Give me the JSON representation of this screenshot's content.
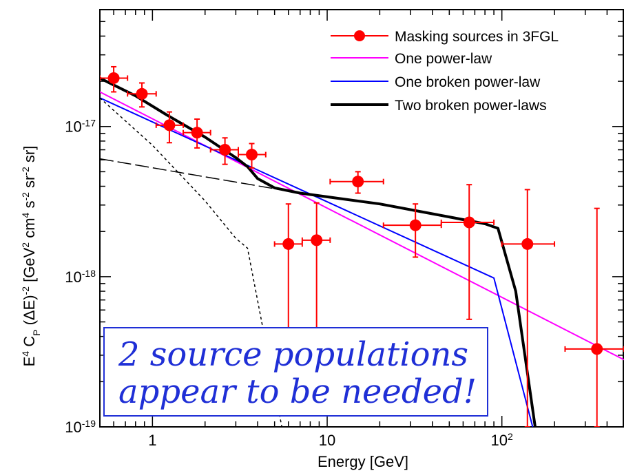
{
  "chart_data": {
    "type": "scatter",
    "title": "",
    "xlabel": "Energy [GeV]",
    "ylabel_parts": {
      "e": "E",
      "four": "4",
      "c": " C",
      "p": "P",
      "delta": " (ΔE)",
      "m2": "-2",
      "gev": " [GeV",
      "two": "2",
      "cm": " cm",
      "four2": "4",
      "s": " s",
      "m2b": "-2",
      "sr": " sr",
      "m2c": "-2",
      "tail": " sr]"
    },
    "xscale": "log",
    "yscale": "log",
    "xlim": [
      0.5,
      500
    ],
    "ylim": [
      1e-19,
      6e-17
    ],
    "xticks": [
      {
        "value": 1,
        "label": "1",
        "sup": ""
      },
      {
        "value": 10,
        "label": "10",
        "sup": ""
      },
      {
        "value": 100,
        "label": "10",
        "sup": "2"
      }
    ],
    "yticks": [
      {
        "value": 1e-19,
        "label": "10",
        "sup": "-19"
      },
      {
        "value": 1e-18,
        "label": "10",
        "sup": "-18"
      },
      {
        "value": 1e-17,
        "label": "10",
        "sup": "-17"
      }
    ],
    "legend_position": "top-right",
    "series": [
      {
        "name": "Masking sources in 3FGL",
        "kind": "points",
        "color": "#ff0000",
        "points": [
          {
            "x": 0.6,
            "xlo": 0.5,
            "xhi": 0.72,
            "y": 2.1e-17,
            "ylo": 1.7e-17,
            "yhi": 2.5e-17
          },
          {
            "x": 0.87,
            "xlo": 0.72,
            "xhi": 1.05,
            "y": 1.65e-17,
            "ylo": 1.35e-17,
            "yhi": 1.95e-17
          },
          {
            "x": 1.25,
            "xlo": 1.05,
            "xhi": 1.5,
            "y": 1.02e-17,
            "ylo": 7.8e-18,
            "yhi": 1.25e-17
          },
          {
            "x": 1.8,
            "xlo": 1.5,
            "xhi": 2.15,
            "y": 9.1e-18,
            "ylo": 7.2e-18,
            "yhi": 1.12e-17
          },
          {
            "x": 2.6,
            "xlo": 2.15,
            "xhi": 3.1,
            "y": 7e-18,
            "ylo": 5.6e-18,
            "yhi": 8.4e-18
          },
          {
            "x": 3.7,
            "xlo": 3.1,
            "xhi": 4.45,
            "y": 6.5e-18,
            "ylo": 5.3e-18,
            "yhi": 7.7e-18
          },
          {
            "x": 6.0,
            "xlo": 5.0,
            "xhi": 7.2,
            "y": 1.65e-18,
            "ylo": 2.8e-19,
            "yhi": 3.05e-18
          },
          {
            "x": 8.7,
            "xlo": 7.2,
            "xhi": 10.4,
            "y": 1.75e-18,
            "ylo": 4.4e-19,
            "yhi": 3.1e-18
          },
          {
            "x": 15,
            "xlo": 10.4,
            "xhi": 21,
            "y": 4.3e-18,
            "ylo": 3.6e-18,
            "yhi": 5e-18
          },
          {
            "x": 32,
            "xlo": 21,
            "xhi": 45,
            "y": 2.2e-18,
            "ylo": 1.35e-18,
            "yhi": 3.05e-18
          },
          {
            "x": 65,
            "xlo": 45,
            "xhi": 90,
            "y": 2.3e-18,
            "ylo": 5.2e-19,
            "yhi": 4.1e-18
          },
          {
            "x": 140,
            "xlo": 100,
            "xhi": 200,
            "y": 1.65e-18,
            "ylo": 1e-19,
            "yhi": 3.8e-18
          },
          {
            "x": 350,
            "xlo": 230,
            "xhi": 500,
            "y": 3.3e-19,
            "ylo": 1e-19,
            "yhi": 2.85e-18
          }
        ]
      },
      {
        "name": "One power-law",
        "kind": "line",
        "color": "#ff00ff",
        "width": 2,
        "dash": "",
        "x": [
          0.5,
          500
        ],
        "y": [
          1.7e-17,
          2.8e-19
        ]
      },
      {
        "name": "One broken power-law",
        "kind": "line",
        "color": "#0000ff",
        "width": 2,
        "dash": "",
        "x": [
          0.5,
          90,
          150
        ],
        "y": [
          1.55e-17,
          9.8e-19,
          1e-19
        ]
      },
      {
        "name": "Two broken power-laws",
        "kind": "line",
        "color": "#000000",
        "width": 4,
        "dash": "",
        "x": [
          0.5,
          0.8,
          1.2,
          2,
          3,
          3.5,
          4,
          5,
          7,
          10,
          20,
          50,
          80,
          95,
          120,
          155
        ],
        "y": [
          2.1e-17,
          1.6e-17,
          1.2e-17,
          8.5e-18,
          6.2e-18,
          5.4e-18,
          4.5e-18,
          3.9e-18,
          3.6e-18,
          3.4e-18,
          3.05e-18,
          2.5e-18,
          2.25e-18,
          2.1e-18,
          8e-19,
          1e-19
        ]
      },
      {
        "name": "",
        "kind": "line",
        "color": "#000000",
        "width": 1.5,
        "dash": "4,4",
        "x": [
          0.5,
          1,
          2,
          3,
          3.5,
          5.5
        ],
        "y": [
          1.55e-17,
          7.5e-18,
          3.2e-18,
          1.8e-18,
          1.55e-18,
          1e-19
        ]
      },
      {
        "name": "",
        "kind": "line",
        "color": "#000000",
        "width": 1.5,
        "dash": "20,6",
        "x": [
          0.5,
          7
        ],
        "y": [
          6.1e-18,
          3.6e-18
        ]
      }
    ],
    "annotation": {
      "lines": [
        "2 source populations",
        "appear to be needed!"
      ],
      "color": "#1f2fd6"
    }
  }
}
